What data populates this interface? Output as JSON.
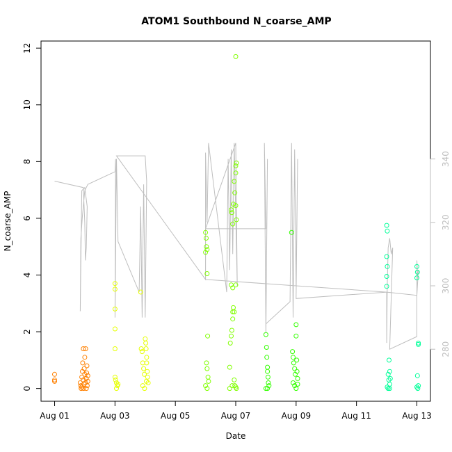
{
  "chart_data": {
    "type": "scatter",
    "title": "ATOM1 Southbound N_coarse_AMP",
    "xlabel": "Date",
    "ylabel": "N_coarse_AMP",
    "x_unit": "days since Aug 01",
    "x_ticks": [
      {
        "value": 0,
        "label": "Aug 01"
      },
      {
        "value": 2,
        "label": "Aug 03"
      },
      {
        "value": 4,
        "label": "Aug 05"
      },
      {
        "value": 6,
        "label": "Aug 07"
      },
      {
        "value": 8,
        "label": "Aug 09"
      },
      {
        "value": 10,
        "label": "Aug 11"
      },
      {
        "value": 12,
        "label": "Aug 13"
      }
    ],
    "xlim": [
      -0.45,
      12.45
    ],
    "ylim": [
      -0.45,
      12.25
    ],
    "y_ticks": [
      0,
      2,
      4,
      6,
      8,
      10,
      12
    ],
    "y2lim": [
      263.6,
      377.2
    ],
    "y2_ticks": [
      280,
      300,
      320,
      340
    ],
    "grid": false,
    "legend": "none",
    "colors": {
      "axis": "#000000",
      "secondary_axis": "#bebebe",
      "line": "#bebebe",
      "aug01_02": "#ff8000",
      "aug03_04": "#e6ff00",
      "aug06_07": "#80ff00",
      "aug08_09": "#33ff00",
      "aug12_13": "#00ff99"
    },
    "series": [
      {
        "color": "#ff8000",
        "points": [
          [
            0,
            0.5
          ],
          [
            0,
            0.3
          ],
          [
            0,
            0.25
          ],
          [
            0.85,
            0.2
          ],
          [
            0.87,
            0.1
          ],
          [
            0.9,
            0.05
          ],
          [
            0.9,
            0.4
          ],
          [
            0.92,
            0.6
          ],
          [
            0.93,
            0.9
          ],
          [
            0.95,
            1.4
          ],
          [
            0.95,
            0.3
          ],
          [
            0.97,
            0.15
          ],
          [
            0.98,
            0.7
          ],
          [
            1.0,
            1.1
          ],
          [
            1.0,
            0.5
          ],
          [
            1.02,
            0.2
          ],
          [
            1.03,
            1.4
          ],
          [
            1.05,
            0.0
          ],
          [
            1.05,
            0.35
          ],
          [
            1.07,
            0.8
          ],
          [
            1.08,
            0.1
          ],
          [
            1.1,
            0.45
          ],
          [
            1.1,
            0.25
          ],
          [
            0.88,
            0.0
          ],
          [
            0.96,
            0.0
          ],
          [
            1.06,
            0.55
          ]
        ]
      },
      {
        "color": "#e6ff00",
        "points": [
          [
            2.0,
            3.7
          ],
          [
            2.0,
            3.5
          ],
          [
            2.0,
            2.8
          ],
          [
            2.0,
            2.1
          ],
          [
            2.0,
            1.4
          ],
          [
            2.0,
            0.4
          ],
          [
            2.02,
            0.3
          ],
          [
            2.05,
            0.2
          ],
          [
            2.08,
            0.1
          ],
          [
            2.05,
            0.0
          ],
          [
            2.1,
            0.15
          ],
          [
            2.85,
            3.4
          ],
          [
            2.87,
            1.4
          ],
          [
            2.9,
            1.3
          ],
          [
            2.92,
            0.9
          ],
          [
            2.95,
            0.7
          ],
          [
            2.97,
            0.5
          ],
          [
            3.0,
            1.75
          ],
          [
            3.02,
            1.6
          ],
          [
            3.03,
            1.4
          ],
          [
            3.05,
            1.1
          ],
          [
            3.05,
            0.9
          ],
          [
            3.07,
            0.6
          ],
          [
            3.08,
            0.4
          ],
          [
            3.1,
            0.2
          ],
          [
            2.92,
            0.1
          ],
          [
            2.98,
            0.0
          ],
          [
            3.04,
            0.25
          ]
        ]
      },
      {
        "color": "#80ff00",
        "points": [
          [
            5.0,
            5.5
          ],
          [
            5.02,
            5.3
          ],
          [
            5.03,
            5.0
          ],
          [
            5.05,
            4.9
          ],
          [
            5.0,
            4.8
          ],
          [
            5.05,
            4.05
          ],
          [
            5.07,
            1.85
          ],
          [
            5.03,
            0.9
          ],
          [
            5.05,
            0.7
          ],
          [
            5.08,
            0.4
          ],
          [
            5.1,
            0.25
          ],
          [
            5.0,
            0.1
          ],
          [
            5.05,
            0.0
          ],
          [
            5.8,
            0.75
          ],
          [
            5.82,
            1.6
          ],
          [
            5.85,
            1.85
          ],
          [
            5.87,
            2.05
          ],
          [
            5.9,
            2.45
          ],
          [
            5.9,
            2.7
          ],
          [
            5.92,
            2.85
          ],
          [
            5.85,
            3.65
          ],
          [
            5.9,
            3.55
          ],
          [
            5.85,
            6.3
          ],
          [
            5.87,
            6.2
          ],
          [
            5.9,
            5.8
          ],
          [
            5.92,
            6.5
          ],
          [
            5.95,
            7.3
          ],
          [
            5.97,
            6.9
          ],
          [
            6.0,
            7.6
          ],
          [
            6.0,
            7.85
          ],
          [
            6.02,
            7.95
          ],
          [
            6.0,
            6.45
          ],
          [
            6.02,
            5.95
          ],
          [
            6.0,
            11.7
          ],
          [
            6.0,
            3.65
          ],
          [
            5.95,
            2.7
          ],
          [
            5.95,
            0.3
          ],
          [
            5.97,
            0.1
          ],
          [
            6.0,
            0.05
          ],
          [
            6.02,
            0.0
          ],
          [
            5.8,
            0.0
          ],
          [
            5.88,
            0.1
          ]
        ]
      },
      {
        "color": "#33ff00",
        "points": [
          [
            7.0,
            1.9
          ],
          [
            7.02,
            1.45
          ],
          [
            7.03,
            1.1
          ],
          [
            7.05,
            0.75
          ],
          [
            7.05,
            0.6
          ],
          [
            7.07,
            0.4
          ],
          [
            7.08,
            0.2
          ],
          [
            7.1,
            0.1
          ],
          [
            7.0,
            0.0
          ],
          [
            7.05,
            0.0
          ],
          [
            7.85,
            5.5
          ],
          [
            7.88,
            1.3
          ],
          [
            7.9,
            1.1
          ],
          [
            7.92,
            0.9
          ],
          [
            7.95,
            0.7
          ],
          [
            7.97,
            0.5
          ],
          [
            8.0,
            2.25
          ],
          [
            8.0,
            1.85
          ],
          [
            8.02,
            1.0
          ],
          [
            8.03,
            0.6
          ],
          [
            8.05,
            0.35
          ],
          [
            7.9,
            0.2
          ],
          [
            7.95,
            0.1
          ],
          [
            8.0,
            0.0
          ],
          [
            8.05,
            0.15
          ]
        ]
      },
      {
        "color": "#00ff99",
        "points": [
          [
            11.0,
            5.75
          ],
          [
            11.02,
            5.55
          ],
          [
            11.0,
            4.65
          ],
          [
            11.02,
            4.3
          ],
          [
            11.0,
            3.95
          ],
          [
            11.0,
            3.6
          ],
          [
            11.05,
            0.5
          ],
          [
            11.07,
            0.3
          ],
          [
            11.1,
            0.15
          ],
          [
            11.08,
            1.0
          ],
          [
            11.1,
            0.6
          ],
          [
            11.12,
            0.35
          ],
          [
            11.02,
            0.05
          ],
          [
            11.05,
            0.0
          ],
          [
            11.1,
            0.0
          ],
          [
            12.0,
            4.3
          ],
          [
            12.02,
            4.1
          ],
          [
            12.0,
            3.9
          ],
          [
            12.05,
            1.6
          ],
          [
            12.05,
            1.55
          ],
          [
            12.02,
            0.45
          ],
          [
            12.05,
            0.1
          ],
          [
            12.03,
            0.0
          ],
          [
            12.0,
            0.05
          ]
        ]
      }
    ],
    "secondary_line": {
      "axis": "right",
      "color": "#bebebe",
      "points": [
        [
          0,
          333
        ],
        [
          0.95,
          331
        ],
        [
          1.0,
          320
        ],
        [
          1.02,
          308
        ],
        [
          1.05,
          312
        ],
        [
          1.08,
          325
        ],
        [
          1.0,
          331
        ],
        [
          0.9,
          330
        ],
        [
          0.85,
          292
        ],
        [
          0.87,
          315
        ],
        [
          0.92,
          322
        ],
        [
          1.0,
          330
        ],
        [
          1.1,
          332
        ],
        [
          2.0,
          336
        ],
        [
          2.02,
          340
        ],
        [
          2.0,
          290
        ],
        [
          2.05,
          340
        ],
        [
          2.1,
          314
        ],
        [
          2.8,
          298
        ],
        [
          2.85,
          325
        ],
        [
          2.9,
          290
        ],
        [
          2.95,
          332
        ],
        [
          3.0,
          290
        ],
        [
          3.05,
          333
        ],
        [
          3.0,
          341
        ],
        [
          2.05,
          341
        ],
        [
          5.0,
          302
        ],
        [
          5.0,
          342
        ],
        [
          5.05,
          320
        ],
        [
          5.1,
          345
        ],
        [
          5.7,
          298
        ],
        [
          5.75,
          340
        ],
        [
          5.8,
          305
        ],
        [
          5.85,
          343
        ],
        [
          5.9,
          310
        ],
        [
          5.95,
          345
        ],
        [
          6.05,
          300
        ],
        [
          6.0,
          345
        ],
        [
          5.0,
          318
        ],
        [
          6.0,
          318
        ],
        [
          7.0,
          318
        ],
        [
          6.95,
          345
        ],
        [
          7.0,
          285
        ],
        [
          7.05,
          340
        ],
        [
          7.0,
          288
        ],
        [
          7.8,
          295
        ],
        [
          7.85,
          345
        ],
        [
          7.9,
          290
        ],
        [
          7.95,
          343
        ],
        [
          8.0,
          300
        ],
        [
          8.05,
          340
        ],
        [
          8.0,
          296
        ],
        [
          11.0,
          298
        ],
        [
          11.0,
          282
        ],
        [
          11.02,
          300
        ],
        [
          11.05,
          312
        ],
        [
          11.1,
          315
        ],
        [
          11.15,
          310
        ],
        [
          11.2,
          312
        ],
        [
          11.1,
          280
        ],
        [
          12.0,
          284
        ],
        [
          12.0,
          308
        ],
        [
          12.03,
          302
        ],
        [
          12.05,
          305
        ],
        [
          12.0,
          297
        ],
        [
          11.0,
          298
        ],
        [
          8.0,
          300
        ],
        [
          5.0,
          302
        ]
      ]
    }
  }
}
